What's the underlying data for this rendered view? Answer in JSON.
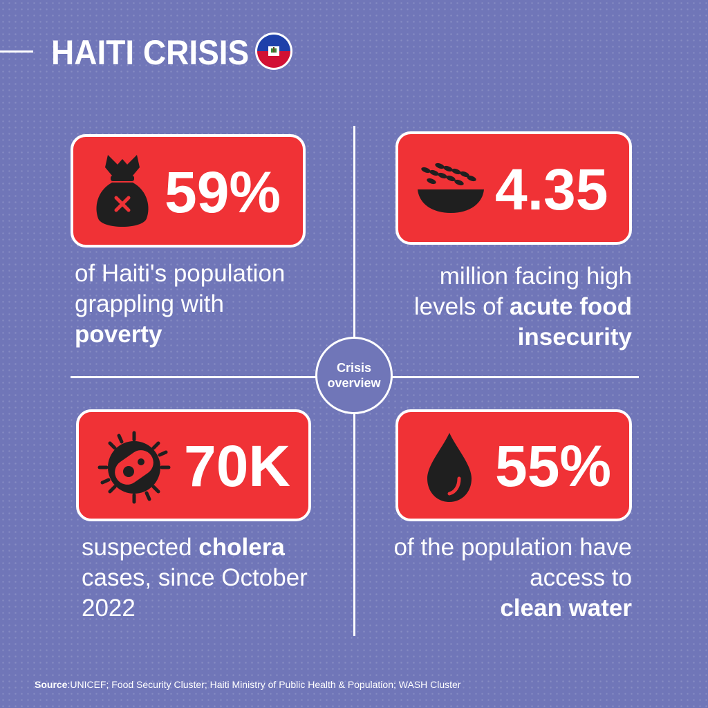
{
  "header": {
    "title": "HAITI CRISIS",
    "flag_icon": "haiti-flag-icon"
  },
  "center": {
    "label": "Crisis overview"
  },
  "colors": {
    "background": "#7076B8",
    "accent_red": "#F03236",
    "text": "#FFFFFF",
    "icon": "#1F1F1F",
    "flag_blue": "#1E40AA",
    "flag_red": "#D21034"
  },
  "stats": [
    {
      "id": "poverty",
      "icon": "money-bag-x-icon",
      "value": "59%",
      "text_before": "of Haiti's population grappling with",
      "highlight": "poverty",
      "text_after": ""
    },
    {
      "id": "food",
      "icon": "wheat-bowl-icon",
      "value": "4.35",
      "text_before": "million facing high levels of",
      "highlight": "acute food insecurity",
      "text_after": ""
    },
    {
      "id": "cholera",
      "icon": "bacteria-icon",
      "value": "70K",
      "text_before": "suspected",
      "highlight": "cholera",
      "text_after": "cases, since October 2022"
    },
    {
      "id": "water",
      "icon": "water-drop-icon",
      "value": "55%",
      "text_before": "of the population have access to",
      "highlight": "clean water",
      "text_after": ""
    }
  ],
  "source": {
    "label": "Source",
    "text": ":UNICEF; Food Security Cluster; Haiti Ministry of Public Health & Population;  WASH Cluster"
  }
}
